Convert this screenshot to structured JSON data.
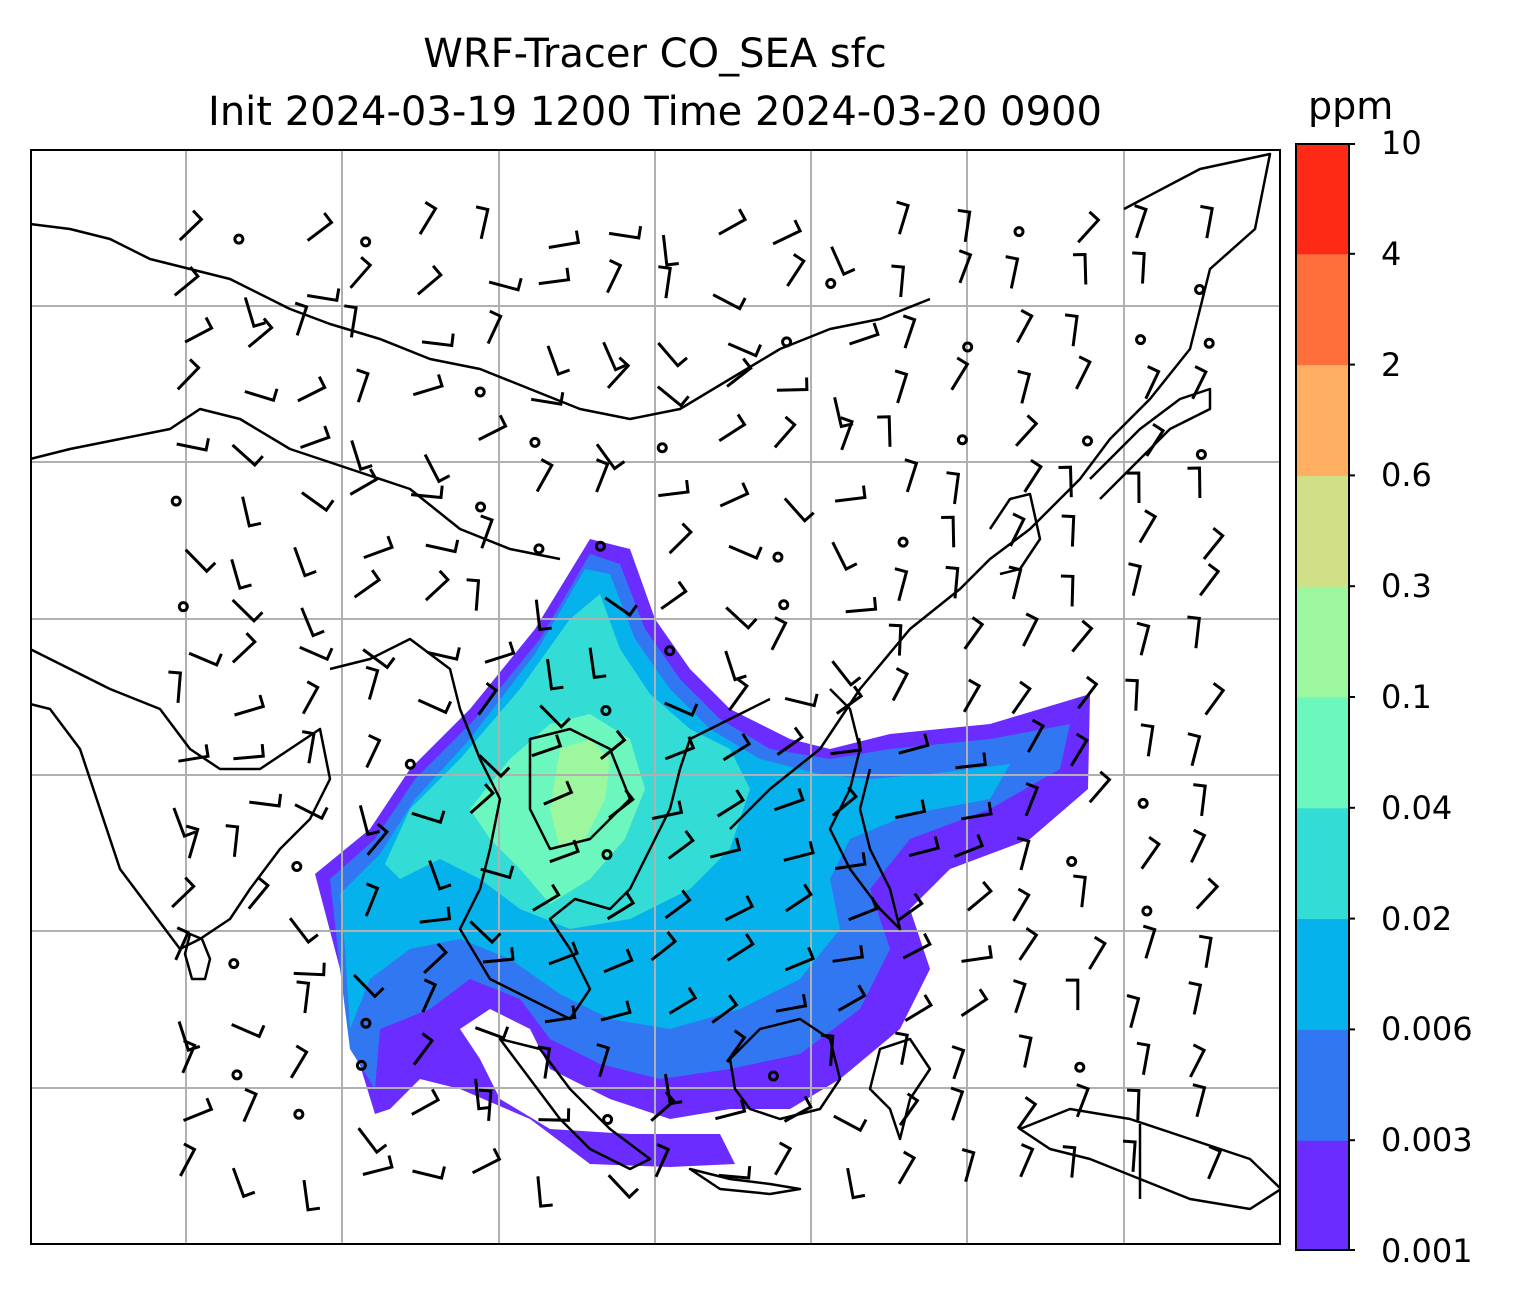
{
  "title": {
    "line1": "WRF-Tracer CO_SEA sfc",
    "line2": "Init 2024-03-19 1200 Time 2024-03-20 0900"
  },
  "colorbar": {
    "unit": "ppm",
    "levels": [
      "0.001",
      "0.003",
      "0.006",
      "0.02",
      "0.04",
      "0.1",
      "0.3",
      "0.6",
      "2",
      "4",
      "10"
    ],
    "colors": [
      "#6a2cff",
      "#3277f2",
      "#06b2ec",
      "#33dcd4",
      "#6cf7bf",
      "#9df79f",
      "#d1e086",
      "#ffaf5f",
      "#ff6f3b",
      "#ff2a16"
    ]
  },
  "map": {
    "land_outline_color": "#000000",
    "gridline_color": "#b0b0b0",
    "wind_barb_color": "#000000"
  }
}
